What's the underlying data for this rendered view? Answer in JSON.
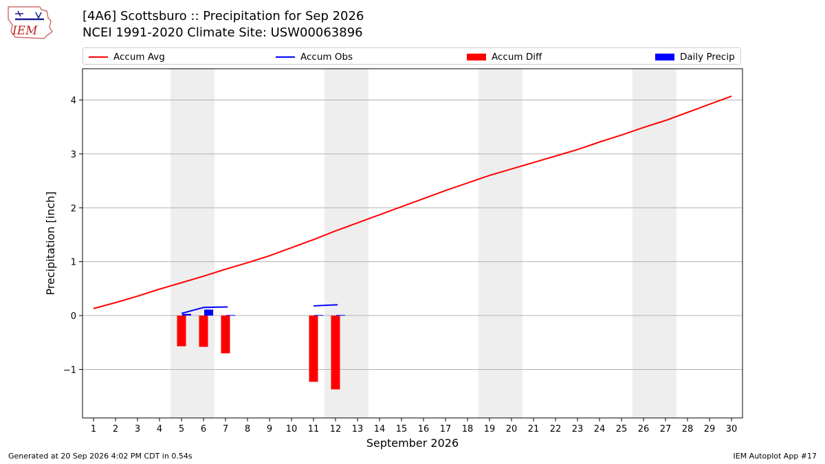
{
  "header": {
    "title_line1": "[4A6] Scottsburo :: Precipitation for Sep 2026",
    "title_line2": "NCEI 1991-2020 Climate Site: USW00063896"
  },
  "logo": {
    "text": "IEM"
  },
  "legend": [
    {
      "label": "Accum Avg",
      "kind": "line",
      "color": "#ff0000"
    },
    {
      "label": "Accum Obs",
      "kind": "line",
      "color": "#0000ff"
    },
    {
      "label": "Accum Diff",
      "kind": "patch",
      "color": "#ff0000"
    },
    {
      "label": "Daily Precip",
      "kind": "patch",
      "color": "#0000ff"
    }
  ],
  "footer": {
    "left": "Generated at 20 Sep 2026 4:02 PM CDT in 0.54s",
    "right": "IEM Autoplot App #17"
  },
  "chart_data": {
    "type": "line",
    "xlabel": "September 2026",
    "ylabel": "Precipitation [inch]",
    "xlim": [
      0.5,
      30.5
    ],
    "ylim": [
      -1.9,
      4.58
    ],
    "x_ticks": [
      1,
      2,
      3,
      4,
      5,
      6,
      7,
      8,
      9,
      10,
      11,
      12,
      13,
      14,
      15,
      16,
      17,
      18,
      19,
      20,
      21,
      22,
      23,
      24,
      25,
      26,
      27,
      28,
      29,
      30
    ],
    "y_ticks": [
      -1,
      0,
      1,
      2,
      3,
      4
    ],
    "y_tick_labels": [
      "−1",
      "0",
      "1",
      "2",
      "3",
      "4"
    ],
    "grid": "horizontal",
    "weekend_shading": [
      [
        4.5,
        6.5
      ],
      [
        11.5,
        13.5
      ],
      [
        18.5,
        20.5
      ],
      [
        25.5,
        27.5
      ]
    ],
    "accum_avg": {
      "name": "Accum Avg",
      "x": [
        1,
        2,
        3,
        4,
        5,
        6,
        7,
        8,
        9,
        10,
        11,
        12,
        13,
        14,
        15,
        16,
        17,
        18,
        19,
        20,
        21,
        22,
        23,
        24,
        25,
        26,
        27,
        28,
        29,
        30
      ],
      "values": [
        0.13,
        0.24,
        0.36,
        0.49,
        0.61,
        0.73,
        0.86,
        0.98,
        1.11,
        1.26,
        1.41,
        1.57,
        1.72,
        1.87,
        2.02,
        2.17,
        2.32,
        2.46,
        2.6,
        2.72,
        2.84,
        2.96,
        3.08,
        3.22,
        3.35,
        3.49,
        3.62,
        3.77,
        3.92,
        4.07
      ]
    },
    "accum_obs": {
      "name": "Accum Obs",
      "segments": [
        {
          "x": [
            5,
            6,
            7.1
          ],
          "values": [
            0.04,
            0.15,
            0.16
          ]
        },
        {
          "x": [
            11,
            12.1
          ],
          "values": [
            0.18,
            0.2
          ]
        }
      ]
    },
    "accum_diff": {
      "name": "Accum Diff",
      "x": [
        5,
        6,
        7,
        11,
        12
      ],
      "values": [
        -0.57,
        -0.58,
        -0.7,
        -1.23,
        -1.37
      ]
    },
    "daily_precip": {
      "name": "Daily Precip",
      "x": [
        5,
        6,
        7,
        11,
        12
      ],
      "values": [
        0.03,
        0.11,
        0.01,
        0.01,
        0.01
      ]
    }
  }
}
